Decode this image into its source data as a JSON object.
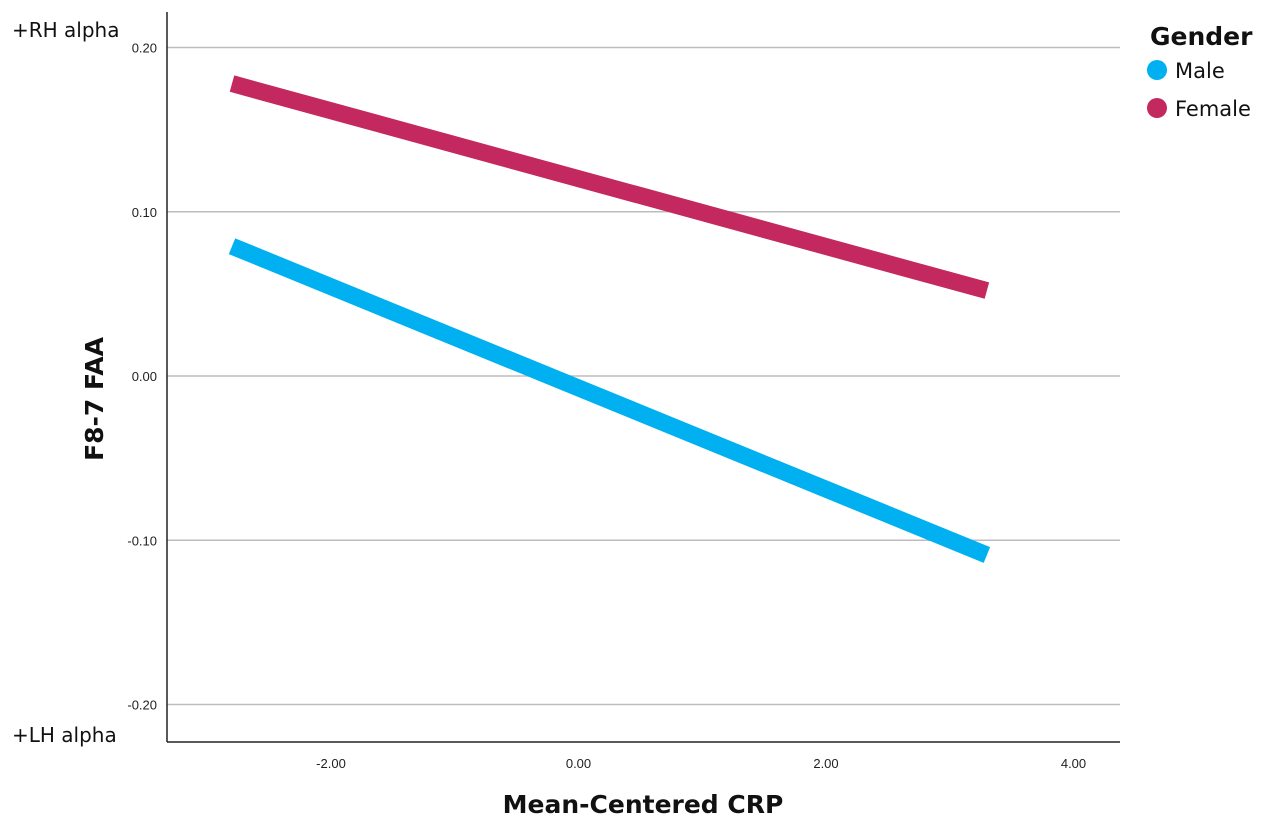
{
  "chart_data": {
    "type": "line",
    "title": "",
    "xlabel": "Mean-Centered CRP",
    "ylabel": "F8-7 FAA",
    "xlim": [
      -3.3,
      4.3
    ],
    "ylim": [
      -0.22,
      0.22
    ],
    "xticks": [
      -2.0,
      0.0,
      2.0,
      4.0
    ],
    "xtick_labels": [
      "-2.00",
      "0.00",
      "2.00",
      "4.00"
    ],
    "yticks": [
      0.2,
      0.1,
      0.0,
      -0.1,
      -0.2
    ],
    "ytick_labels": [
      "0.20",
      "0.10",
      "0.00",
      "-0.10",
      "-0.20"
    ],
    "grid": "horizontal",
    "annotations": {
      "top": "+RH alpha",
      "bottom": "+LH alpha"
    },
    "legend": {
      "title": "Gender",
      "position": "top-right"
    },
    "series": [
      {
        "name": "Male",
        "color": "#00b0f0",
        "x": [
          -2.8,
          3.3
        ],
        "y": [
          0.079,
          -0.109
        ]
      },
      {
        "name": "Female",
        "color": "#c3295e",
        "x": [
          -2.8,
          3.3
        ],
        "y": [
          0.178,
          0.052
        ]
      }
    ]
  }
}
